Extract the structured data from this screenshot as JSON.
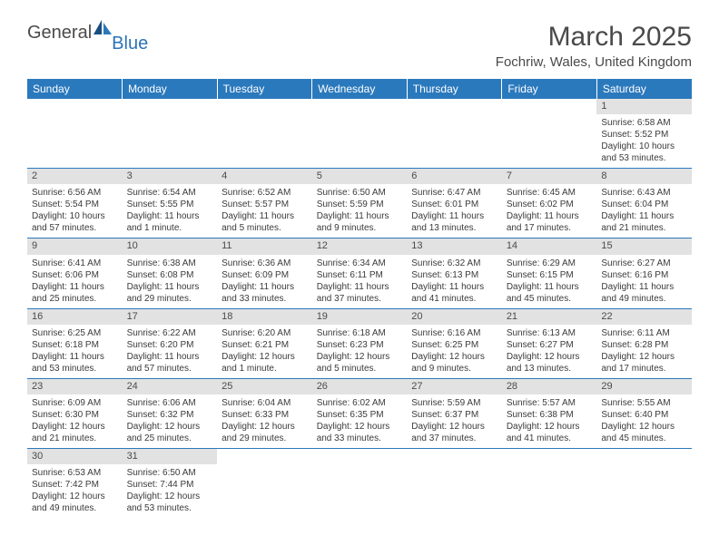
{
  "brand": {
    "general": "General",
    "blue": "Blue"
  },
  "title": "March 2025",
  "location": "Fochriw, Wales, United Kingdom",
  "colors": {
    "header_bg": "#2b79bd",
    "header_fg": "#ffffff",
    "daynum_bg": "#e2e2e2",
    "text": "#4a4a4a",
    "row_border": "#2b79bd",
    "logo_blue": "#2b72b8"
  },
  "weekdays": [
    "Sunday",
    "Monday",
    "Tuesday",
    "Wednesday",
    "Thursday",
    "Friday",
    "Saturday"
  ],
  "days": {
    "1": {
      "sunrise": "6:58 AM",
      "sunset": "5:52 PM",
      "daylight": "10 hours and 53 minutes."
    },
    "2": {
      "sunrise": "6:56 AM",
      "sunset": "5:54 PM",
      "daylight": "10 hours and 57 minutes."
    },
    "3": {
      "sunrise": "6:54 AM",
      "sunset": "5:55 PM",
      "daylight": "11 hours and 1 minute."
    },
    "4": {
      "sunrise": "6:52 AM",
      "sunset": "5:57 PM",
      "daylight": "11 hours and 5 minutes."
    },
    "5": {
      "sunrise": "6:50 AM",
      "sunset": "5:59 PM",
      "daylight": "11 hours and 9 minutes."
    },
    "6": {
      "sunrise": "6:47 AM",
      "sunset": "6:01 PM",
      "daylight": "11 hours and 13 minutes."
    },
    "7": {
      "sunrise": "6:45 AM",
      "sunset": "6:02 PM",
      "daylight": "11 hours and 17 minutes."
    },
    "8": {
      "sunrise": "6:43 AM",
      "sunset": "6:04 PM",
      "daylight": "11 hours and 21 minutes."
    },
    "9": {
      "sunrise": "6:41 AM",
      "sunset": "6:06 PM",
      "daylight": "11 hours and 25 minutes."
    },
    "10": {
      "sunrise": "6:38 AM",
      "sunset": "6:08 PM",
      "daylight": "11 hours and 29 minutes."
    },
    "11": {
      "sunrise": "6:36 AM",
      "sunset": "6:09 PM",
      "daylight": "11 hours and 33 minutes."
    },
    "12": {
      "sunrise": "6:34 AM",
      "sunset": "6:11 PM",
      "daylight": "11 hours and 37 minutes."
    },
    "13": {
      "sunrise": "6:32 AM",
      "sunset": "6:13 PM",
      "daylight": "11 hours and 41 minutes."
    },
    "14": {
      "sunrise": "6:29 AM",
      "sunset": "6:15 PM",
      "daylight": "11 hours and 45 minutes."
    },
    "15": {
      "sunrise": "6:27 AM",
      "sunset": "6:16 PM",
      "daylight": "11 hours and 49 minutes."
    },
    "16": {
      "sunrise": "6:25 AM",
      "sunset": "6:18 PM",
      "daylight": "11 hours and 53 minutes."
    },
    "17": {
      "sunrise": "6:22 AM",
      "sunset": "6:20 PM",
      "daylight": "11 hours and 57 minutes."
    },
    "18": {
      "sunrise": "6:20 AM",
      "sunset": "6:21 PM",
      "daylight": "12 hours and 1 minute."
    },
    "19": {
      "sunrise": "6:18 AM",
      "sunset": "6:23 PM",
      "daylight": "12 hours and 5 minutes."
    },
    "20": {
      "sunrise": "6:16 AM",
      "sunset": "6:25 PM",
      "daylight": "12 hours and 9 minutes."
    },
    "21": {
      "sunrise": "6:13 AM",
      "sunset": "6:27 PM",
      "daylight": "12 hours and 13 minutes."
    },
    "22": {
      "sunrise": "6:11 AM",
      "sunset": "6:28 PM",
      "daylight": "12 hours and 17 minutes."
    },
    "23": {
      "sunrise": "6:09 AM",
      "sunset": "6:30 PM",
      "daylight": "12 hours and 21 minutes."
    },
    "24": {
      "sunrise": "6:06 AM",
      "sunset": "6:32 PM",
      "daylight": "12 hours and 25 minutes."
    },
    "25": {
      "sunrise": "6:04 AM",
      "sunset": "6:33 PM",
      "daylight": "12 hours and 29 minutes."
    },
    "26": {
      "sunrise": "6:02 AM",
      "sunset": "6:35 PM",
      "daylight": "12 hours and 33 minutes."
    },
    "27": {
      "sunrise": "5:59 AM",
      "sunset": "6:37 PM",
      "daylight": "12 hours and 37 minutes."
    },
    "28": {
      "sunrise": "5:57 AM",
      "sunset": "6:38 PM",
      "daylight": "12 hours and 41 minutes."
    },
    "29": {
      "sunrise": "5:55 AM",
      "sunset": "6:40 PM",
      "daylight": "12 hours and 45 minutes."
    },
    "30": {
      "sunrise": "6:53 AM",
      "sunset": "7:42 PM",
      "daylight": "12 hours and 49 minutes."
    },
    "31": {
      "sunrise": "6:50 AM",
      "sunset": "7:44 PM",
      "daylight": "12 hours and 53 minutes."
    }
  },
  "labels": {
    "sunrise": "Sunrise:",
    "sunset": "Sunset:",
    "daylight": "Daylight:"
  },
  "grid": {
    "firstDayOffset": 6,
    "numDays": 31,
    "rows": 6
  }
}
